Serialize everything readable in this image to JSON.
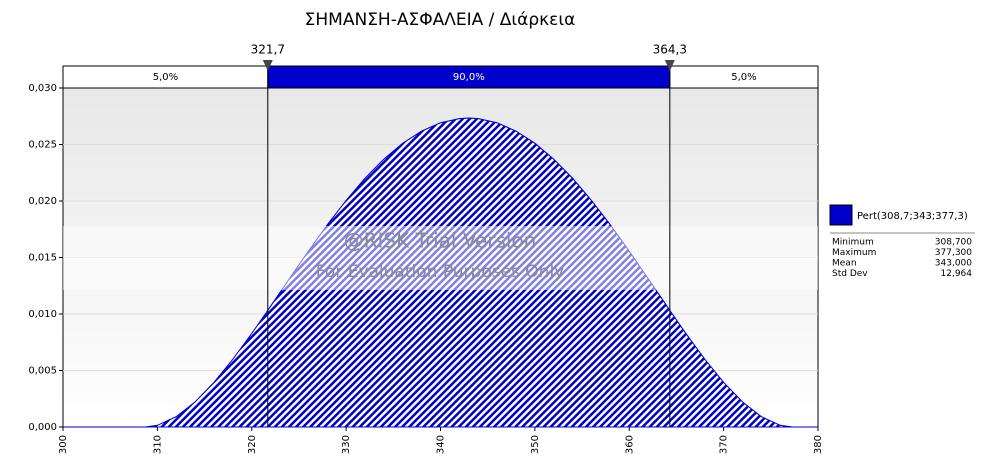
{
  "chart_data": {
    "type": "area",
    "title": "ΣΗΜΑΝΣΗ-ΑΣΦΑΛΕΙΑ / Διάρκεια",
    "x": [
      300,
      308.7,
      310,
      312,
      314,
      316,
      318,
      320,
      322,
      324,
      326,
      328,
      330,
      332,
      334,
      336,
      338,
      340,
      342,
      343,
      344,
      346,
      348,
      350,
      352,
      354,
      356,
      358,
      360,
      362,
      364,
      366,
      368,
      370,
      372,
      374,
      376,
      377.3,
      380
    ],
    "values": [
      0,
      0,
      0.000151,
      0.000917,
      0.002223,
      0.003954,
      0.006006,
      0.008279,
      0.010682,
      0.013132,
      0.015554,
      0.017878,
      0.020044,
      0.022,
      0.023699,
      0.025103,
      0.026183,
      0.026917,
      0.027286,
      0.027332,
      0.027286,
      0.026917,
      0.026183,
      0.025103,
      0.023699,
      0.022,
      0.020044,
      0.017878,
      0.015554,
      0.013132,
      0.010682,
      0.008279,
      0.006006,
      0.003954,
      0.002223,
      0.000917,
      0.000151,
      0,
      0
    ],
    "color": "#0000cc",
    "xlim": [
      300,
      380
    ],
    "xticks": [
      300,
      310,
      320,
      330,
      340,
      350,
      360,
      370,
      380
    ],
    "ylim": [
      0,
      0.03
    ],
    "yticks": [
      {
        "value": 0,
        "label": "0,000"
      },
      {
        "value": 0.005,
        "label": "0,005"
      },
      {
        "value": 0.01,
        "label": "0,010"
      },
      {
        "value": 0.015,
        "label": "0,015"
      },
      {
        "value": 0.02,
        "label": "0,020"
      },
      {
        "value": 0.025,
        "label": "0,025"
      },
      {
        "value": 0.03,
        "label": "0,030"
      }
    ],
    "delimiters": [
      {
        "value": 321.7,
        "label": "321,7"
      },
      {
        "value": 364.3,
        "label": "364,3"
      }
    ],
    "regions": [
      "5,0%",
      "90,0%",
      "5,0%"
    ],
    "watermark": [
      "@RISK Trial Version",
      "For Evaluation Purposes Only"
    ],
    "legend": {
      "name": "Pert(308,7;343;377,3)",
      "stats": [
        [
          "Minimum",
          "308,700"
        ],
        [
          "Maximum",
          "377,300"
        ],
        [
          "Mean",
          "343,000"
        ],
        [
          "Std Dev",
          "12,964"
        ]
      ]
    }
  }
}
